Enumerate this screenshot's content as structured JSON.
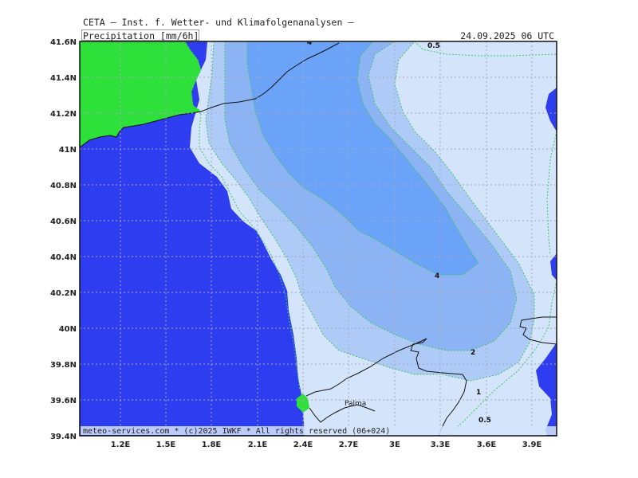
{
  "header": {
    "title": "CETA — Inst. f. Wetter- und Klimafolgenanalysen —",
    "parameter": "Precipitation [mm/6h]",
    "valid_time": "24.09.2025 06 UTC"
  },
  "footer": {
    "copyright": "meteo-services.com * (c)2025 IWKF * All rights reserved (06+024)"
  },
  "axes": {
    "lat_labels": [
      "41.6N",
      "41.4N",
      "41.2N",
      "41N",
      "40.8N",
      "40.6N",
      "40.4N",
      "40.2N",
      "40N",
      "39.8N",
      "39.6N",
      "39.4N"
    ],
    "lon_labels": [
      "1.2E",
      "1.5E",
      "1.8E",
      "2.1E",
      "2.4E",
      "2.7E",
      "3E",
      "3.3E",
      "3.6E",
      "3.9E"
    ]
  },
  "contours": {
    "labels": [
      "0.5",
      "4",
      "4",
      "2",
      "1",
      "0.5"
    ]
  },
  "places": {
    "palma": "Palma"
  },
  "colors": {
    "sea": "#2e3df0",
    "land": "#2ee03a",
    "precip_0_5": "#d4e4fb",
    "precip_1": "#aecbf8",
    "precip_2": "#8cb4f5",
    "precip_4": "#6aa3f8",
    "contour_line": "#3ac860",
    "grid": "#a8a8c0"
  }
}
